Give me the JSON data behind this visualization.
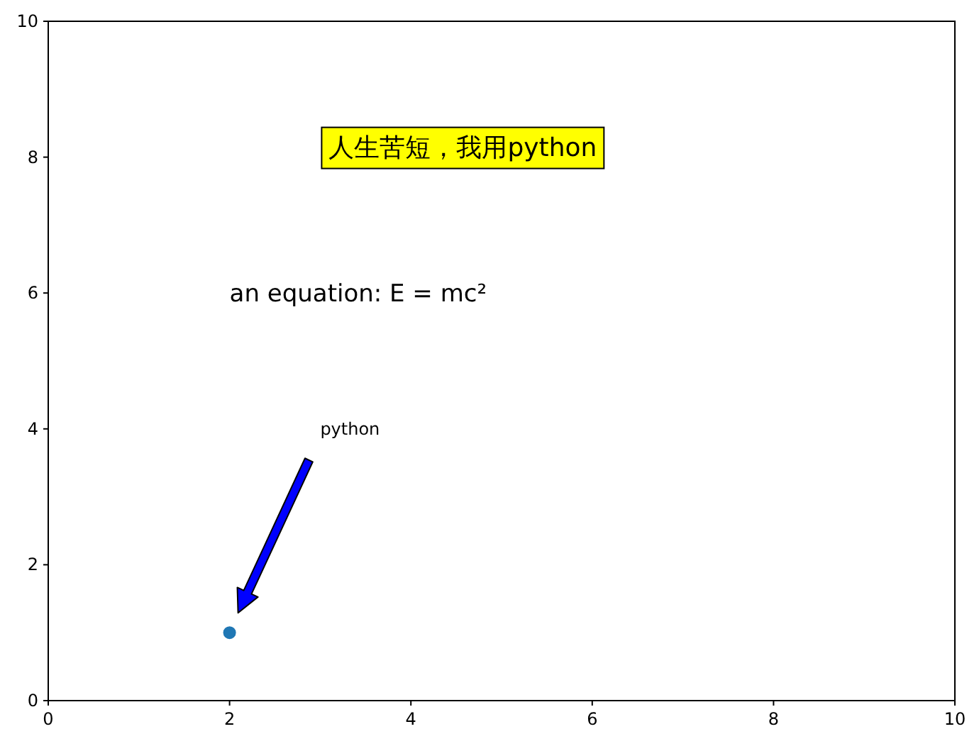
{
  "chart_data": {
    "type": "scatter",
    "x": [
      2
    ],
    "values": [
      1
    ],
    "color": "#1f77b4",
    "marker": "circle",
    "xlim": [
      0,
      10
    ],
    "ylim": [
      0,
      10
    ],
    "xticks": [
      0,
      2,
      4,
      6,
      8,
      10
    ],
    "yticks": [
      0,
      2,
      4,
      6,
      8,
      10
    ],
    "annotations": [
      "人生苦短，我用python",
      "an equation: E = mc²",
      "python"
    ]
  }
}
